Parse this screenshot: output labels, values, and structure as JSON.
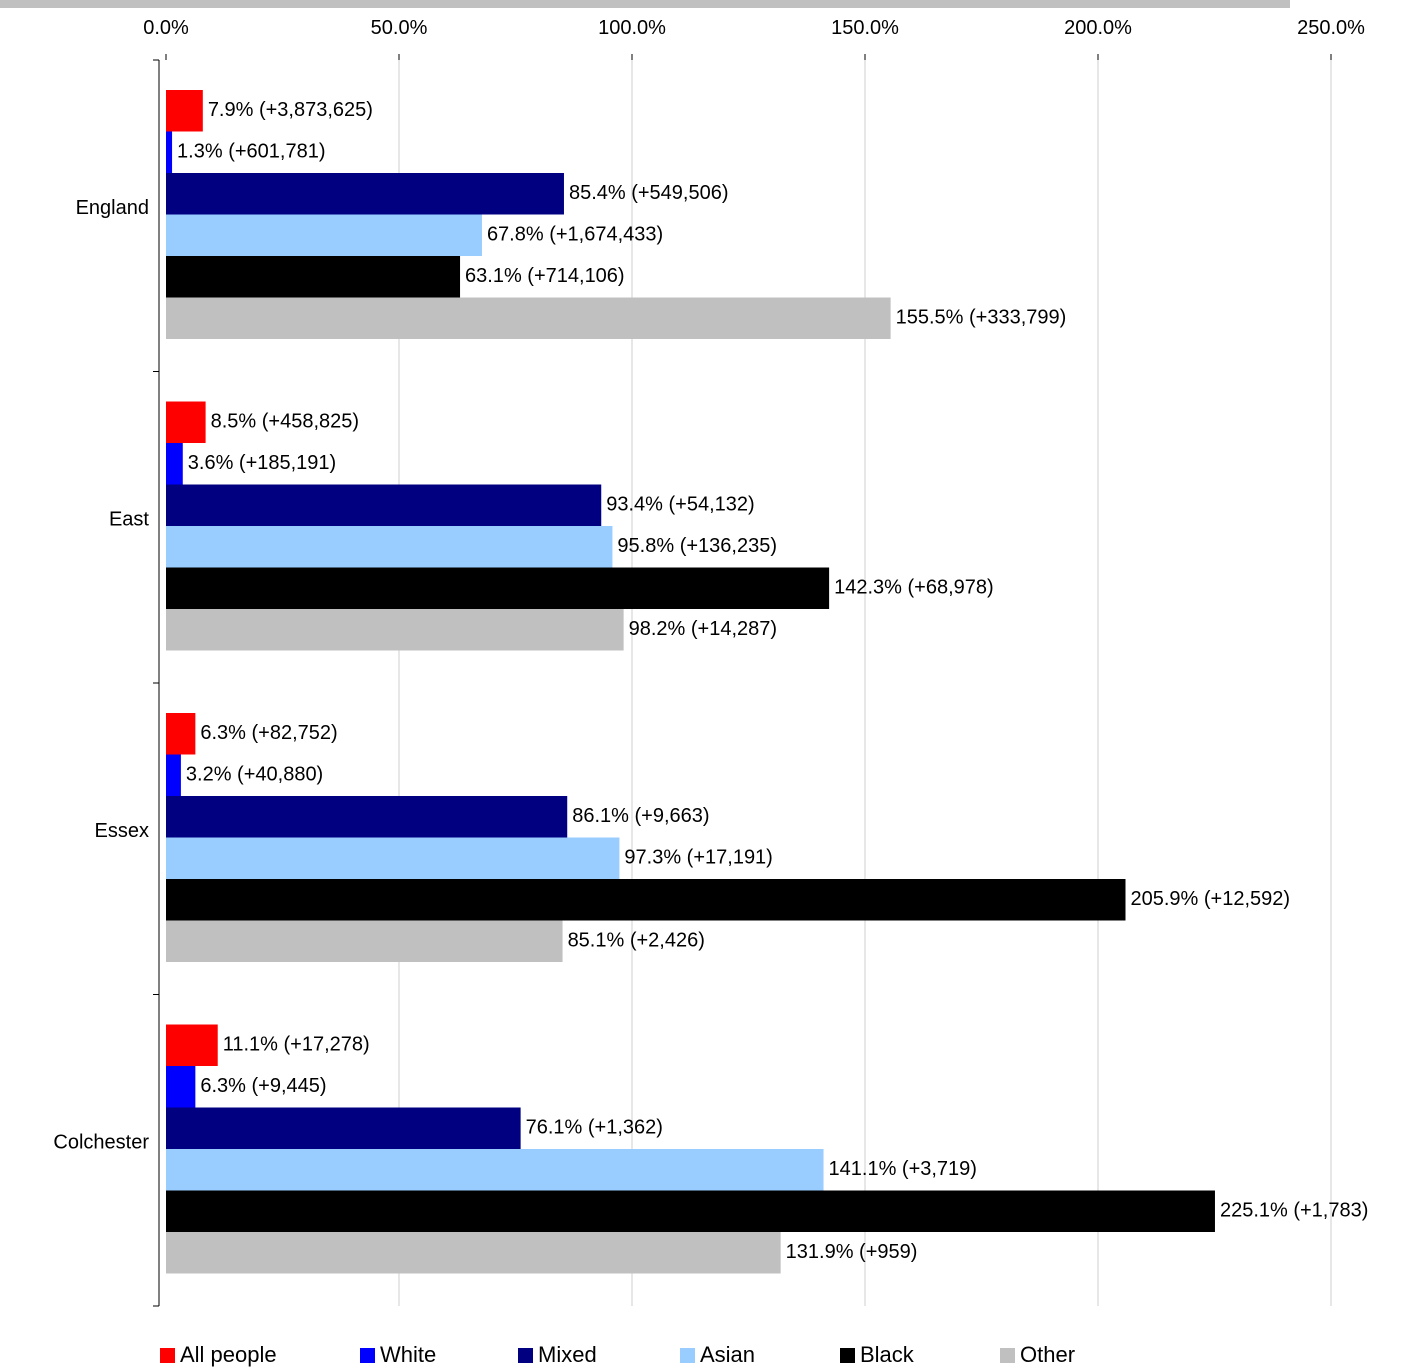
{
  "chart_data": {
    "type": "bar",
    "orientation": "horizontal",
    "title": "",
    "xlabel": "",
    "ylabel": "",
    "xlim": [
      0,
      250
    ],
    "x_ticks": [
      "0.0%",
      "50.0%",
      "100.0%",
      "150.0%",
      "200.0%",
      "250.0%"
    ],
    "x_axis_position": "top",
    "grid": "vertical",
    "legend_position": "bottom",
    "categories": [
      "England",
      "East",
      "Essex",
      "Colchester"
    ],
    "series": [
      {
        "name": "All people",
        "color": "#ff0000",
        "values": [
          7.9,
          8.5,
          6.3,
          11.1
        ],
        "labels": [
          "7.9% (+3,873,625)",
          "8.5% (+458,825)",
          "6.3% (+82,752)",
          "11.1% (+17,278)"
        ]
      },
      {
        "name": "White",
        "color": "#0000ff",
        "values": [
          1.3,
          3.6,
          3.2,
          6.3
        ],
        "labels": [
          "1.3% (+601,781)",
          "3.6% (+185,191)",
          "3.2% (+40,880)",
          "6.3% (+9,445)"
        ]
      },
      {
        "name": "Mixed",
        "color": "#000080",
        "values": [
          85.4,
          93.4,
          86.1,
          76.1
        ],
        "labels": [
          "85.4% (+549,506)",
          "93.4% (+54,132)",
          "86.1% (+9,663)",
          "76.1% (+1,362)"
        ]
      },
      {
        "name": "Asian",
        "color": "#99ccff",
        "values": [
          67.8,
          95.8,
          97.3,
          141.1
        ],
        "labels": [
          "67.8% (+1,674,433)",
          "95.8% (+136,235)",
          "97.3% (+17,191)",
          "141.1% (+3,719)"
        ]
      },
      {
        "name": "Black",
        "color": "#000000",
        "values": [
          63.1,
          142.3,
          205.9,
          225.1
        ],
        "labels": [
          "63.1% (+714,106)",
          "142.3% (+68,978)",
          "205.9% (+12,592)",
          "225.1% (+1,783)"
        ]
      },
      {
        "name": "Other",
        "color": "#c0c0c0",
        "values": [
          155.5,
          98.2,
          85.1,
          131.9
        ],
        "labels": [
          "155.5% (+333,799)",
          "98.2% (+14,287)",
          "85.1% (+2,426)",
          "131.9% (+959)"
        ]
      }
    ]
  }
}
